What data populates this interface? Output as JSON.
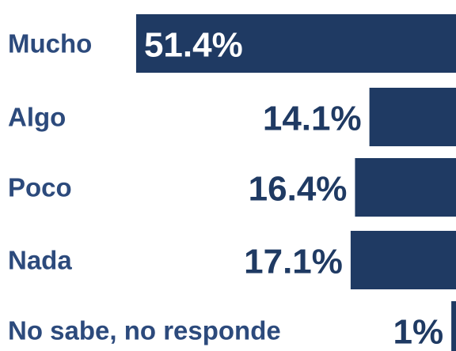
{
  "chart_data": {
    "type": "bar",
    "orientation": "horizontal",
    "categories": [
      "Mucho",
      "Algo",
      "Poco",
      "Nada",
      "No sabe, no responde"
    ],
    "values": [
      51.4,
      14.1,
      16.4,
      17.1,
      1
    ],
    "value_labels": [
      "51.4%",
      "14.1%",
      "16.4%",
      "17.1%",
      "1%"
    ],
    "color": "#1f3a63"
  }
}
